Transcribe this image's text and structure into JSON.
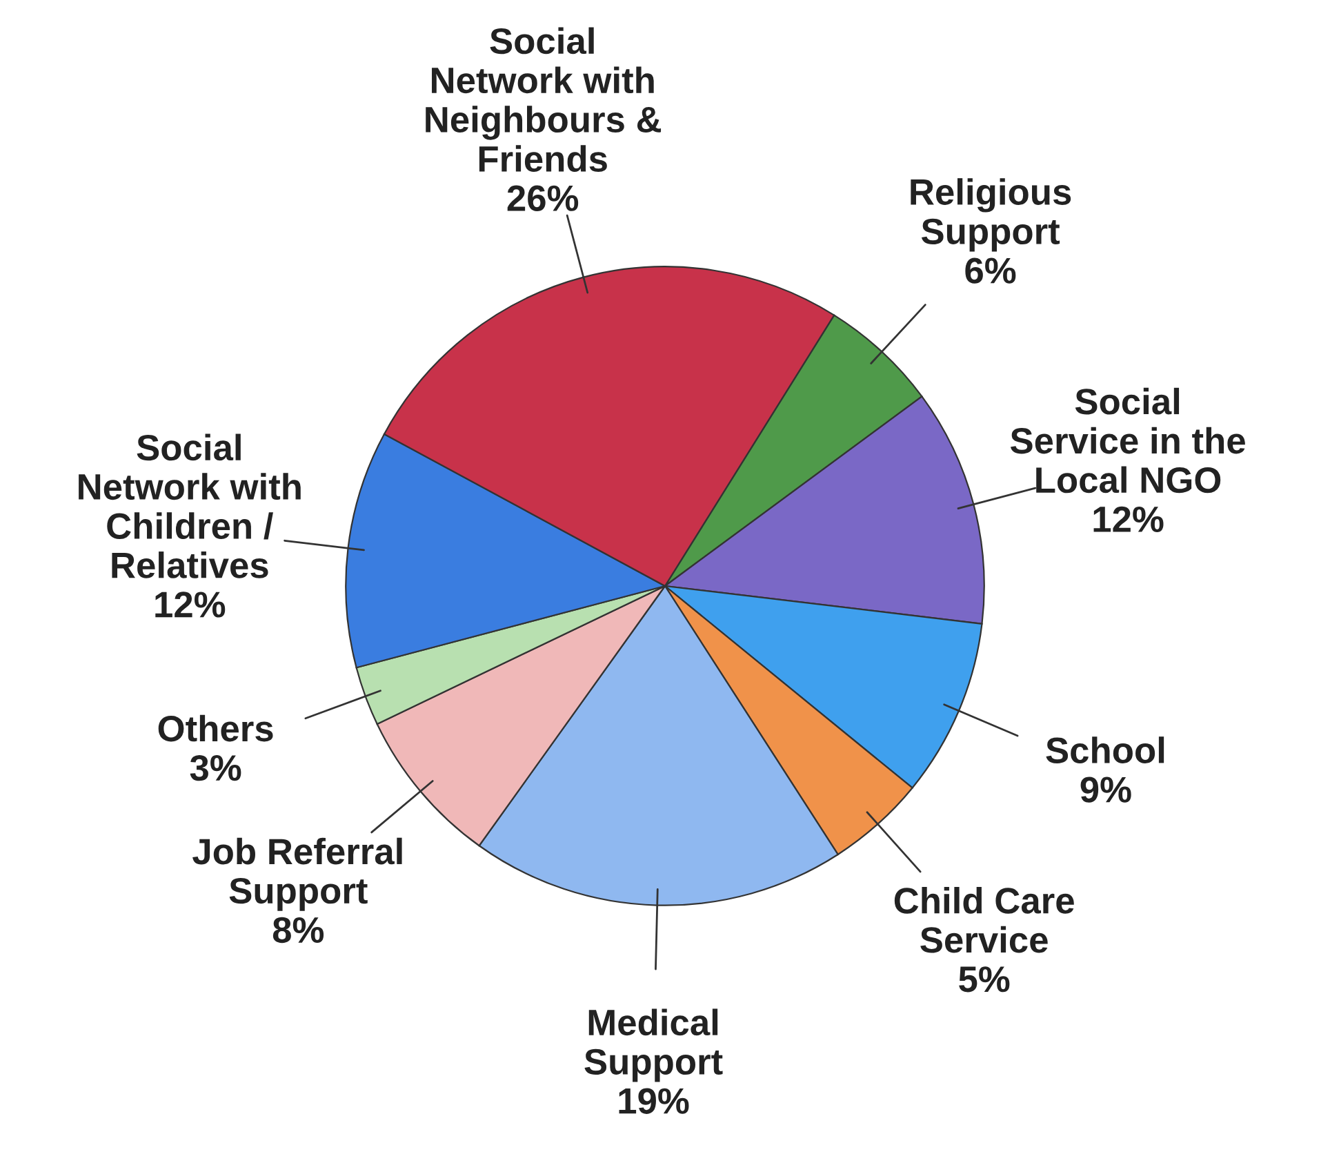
{
  "chart_data": {
    "type": "pie",
    "categories": [
      "Religious\nSupport",
      "Social\nService in the\nLocal NGO",
      "School",
      "Child Care\nService",
      "Medical\nSupport",
      "Job Referral\nSupport",
      "Others",
      "Social\nNetwork with\nChildren /\nRelatives",
      "Social\nNetwork with\nNeighbours &\nFriends"
    ],
    "values": [
      6,
      12,
      9,
      5,
      19,
      8,
      3,
      12,
      26
    ],
    "value_labels": [
      "6%",
      "12%",
      "9%",
      "5%",
      "19%",
      "8%",
      "3%",
      "12%",
      "26%"
    ],
    "colors": [
      "#4f9a4a",
      "#7a68c6",
      "#3fa0ee",
      "#f0924a",
      "#8fb8f0",
      "#f0b8b8",
      "#b8e0b0",
      "#3a7de0",
      "#c8324a"
    ]
  }
}
